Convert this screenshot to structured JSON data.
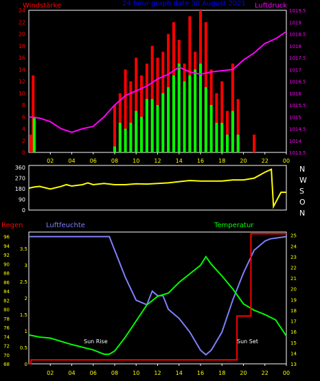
{
  "chart_data": [
    {
      "type": "bar",
      "title": "24 hour graph date  30 August 2021",
      "ylabel": "Windstärke",
      "y2label": "Luftdruck",
      "ylim": [
        0,
        24
      ],
      "y2lim": [
        1013.5,
        1019.5
      ],
      "yticks": [
        0,
        2,
        4,
        6,
        8,
        10,
        12,
        14,
        16,
        18,
        20,
        22,
        24
      ],
      "y2ticks": [
        "1013.5",
        "1014",
        "1014.5",
        "1015",
        "1015.5",
        "1016",
        "1016.5",
        "1017",
        "1017.5",
        "1018",
        "1018.5",
        "1019",
        "1019.5"
      ],
      "xticks": [
        "02",
        "04",
        "06",
        "08",
        "10",
        "12",
        "14",
        "16",
        "18",
        "20",
        "22",
        "00"
      ],
      "colors": {
        "gust": "#ff0000",
        "wind": "#00ff00",
        "pressure": "#ff00ff"
      },
      "series": [
        {
          "name": "Windstärke",
          "x": [
            0.2,
            0.4,
            0.5,
            8.0,
            8.5,
            9.0,
            9.5,
            10.0,
            10.5,
            11.0,
            11.5,
            12.0,
            12.5,
            13.0,
            13.5,
            14.0,
            14.5,
            15.0,
            15.5,
            16.0,
            16.5,
            17.0,
            17.5,
            18.0,
            18.5,
            19.0,
            19.5,
            21.0
          ],
          "gust": [
            3,
            13,
            6,
            8,
            10,
            14,
            12,
            16,
            13,
            15,
            18,
            16,
            17,
            20,
            22,
            19,
            15,
            23,
            17,
            24,
            22,
            14,
            10,
            12,
            7,
            15,
            9,
            3
          ],
          "values": [
            0,
            0,
            6,
            1,
            5,
            4,
            5,
            7,
            6,
            9,
            9,
            8,
            10,
            11,
            13,
            15,
            12,
            13,
            14,
            15,
            11,
            8,
            5,
            5,
            3,
            7,
            3,
            0
          ]
        },
        {
          "name": "Luftdruck",
          "x": [
            0,
            1,
            2,
            3,
            4,
            5,
            6,
            7,
            8,
            9,
            10,
            11,
            12,
            13,
            14,
            15,
            16,
            17,
            18,
            19,
            19.5,
            20,
            21,
            22,
            23,
            24
          ],
          "values": [
            1015.0,
            1014.95,
            1014.8,
            1014.5,
            1014.35,
            1014.5,
            1014.6,
            1015.0,
            1015.5,
            1015.9,
            1016.1,
            1016.3,
            1016.6,
            1016.8,
            1017.1,
            1016.9,
            1016.8,
            1016.9,
            1016.95,
            1017.0,
            1017.2,
            1017.4,
            1017.7,
            1018.1,
            1018.3,
            1018.6
          ]
        }
      ]
    },
    {
      "type": "line",
      "ylabel": "",
      "ylim": [
        0,
        360
      ],
      "yticks": [
        0,
        90,
        180,
        270,
        360
      ],
      "ylabels_right": [
        "N",
        "W",
        "S",
        "O",
        "N"
      ],
      "color": "#ffff00",
      "series": [
        {
          "name": "Windrichtung",
          "x": [
            0,
            0.5,
            1,
            2,
            3,
            3.5,
            4,
            5,
            5.5,
            6,
            7,
            8,
            9,
            10,
            11,
            12,
            13,
            14,
            15,
            16,
            17,
            18,
            19,
            20,
            21,
            22,
            22.6,
            22.8,
            23.5,
            24
          ],
          "values": [
            185,
            195,
            200,
            178,
            200,
            215,
            203,
            215,
            230,
            215,
            225,
            215,
            215,
            222,
            220,
            225,
            230,
            240,
            250,
            245,
            245,
            245,
            255,
            255,
            270,
            320,
            345,
            30,
            150,
            150
          ]
        }
      ]
    },
    {
      "type": "line",
      "ylabel": "Regen",
      "y2label": "Luftfeuchte",
      "y3label": "Temperatur",
      "ylim": [
        0,
        4
      ],
      "humidity_lim": [
        68,
        97
      ],
      "temperature_lim": [
        13,
        25.3
      ],
      "yticks_rain": [
        "0",
        "0.5",
        "1",
        "1.5",
        "2",
        "2.5",
        "3",
        "3.5"
      ],
      "yticks_humidity": [
        "68",
        "70",
        "72",
        "74",
        "76",
        "78",
        "80",
        "82",
        "84",
        "86",
        "88",
        "90",
        "92",
        "94",
        "96"
      ],
      "yticks_temperature": [
        "13",
        "14",
        "15",
        "16",
        "17",
        "18",
        "19",
        "20",
        "21",
        "22",
        "23",
        "24",
        "25"
      ],
      "xticks": [
        "02",
        "04",
        "06",
        "08",
        "10",
        "12",
        "14",
        "16",
        "18",
        "20",
        "22",
        "00"
      ],
      "annotations": [
        "Sun Rise",
        "Sun Set"
      ],
      "colors": {
        "rain": "#ff0000",
        "humidity": "#8080ff",
        "temperature": "#00ff00"
      },
      "series": [
        {
          "name": "Regen",
          "x": [
            0,
            0.2,
            0.2,
            19.4,
            19.4,
            20.7,
            20.7,
            24
          ],
          "values": [
            0,
            0,
            0.12,
            0.12,
            1.45,
            1.45,
            3.95,
            3.95
          ]
        },
        {
          "name": "Luftfeuchte",
          "x": [
            0,
            6,
            6.8,
            7.5,
            8,
            9,
            10,
            11,
            11.5,
            12,
            12.5,
            13,
            14,
            15,
            16,
            16.5,
            17,
            18,
            19,
            20,
            21,
            22,
            22.5,
            24
          ],
          "values": [
            96,
            96,
            96,
            96,
            93,
            87,
            82,
            81,
            84,
            83,
            83,
            80,
            78,
            75,
            71,
            70,
            71,
            75,
            82,
            88,
            93,
            95,
            95.5,
            96
          ]
        },
        {
          "name": "Temperatur",
          "x": [
            0,
            1,
            2,
            4,
            6,
            7,
            7.5,
            8,
            9,
            10,
            11,
            12,
            13,
            14,
            15,
            16,
            16.5,
            17,
            18,
            19,
            20,
            21,
            22,
            23,
            24
          ],
          "values": [
            15.7,
            15.5,
            15.4,
            14.8,
            14.3,
            13.9,
            13.9,
            14.2,
            15.5,
            17.0,
            18.5,
            19.3,
            19.6,
            20.6,
            21.4,
            22.2,
            23.0,
            22.3,
            21.2,
            20.0,
            18.6,
            18.0,
            17.6,
            17.1,
            15.6
          ]
        }
      ]
    }
  ]
}
